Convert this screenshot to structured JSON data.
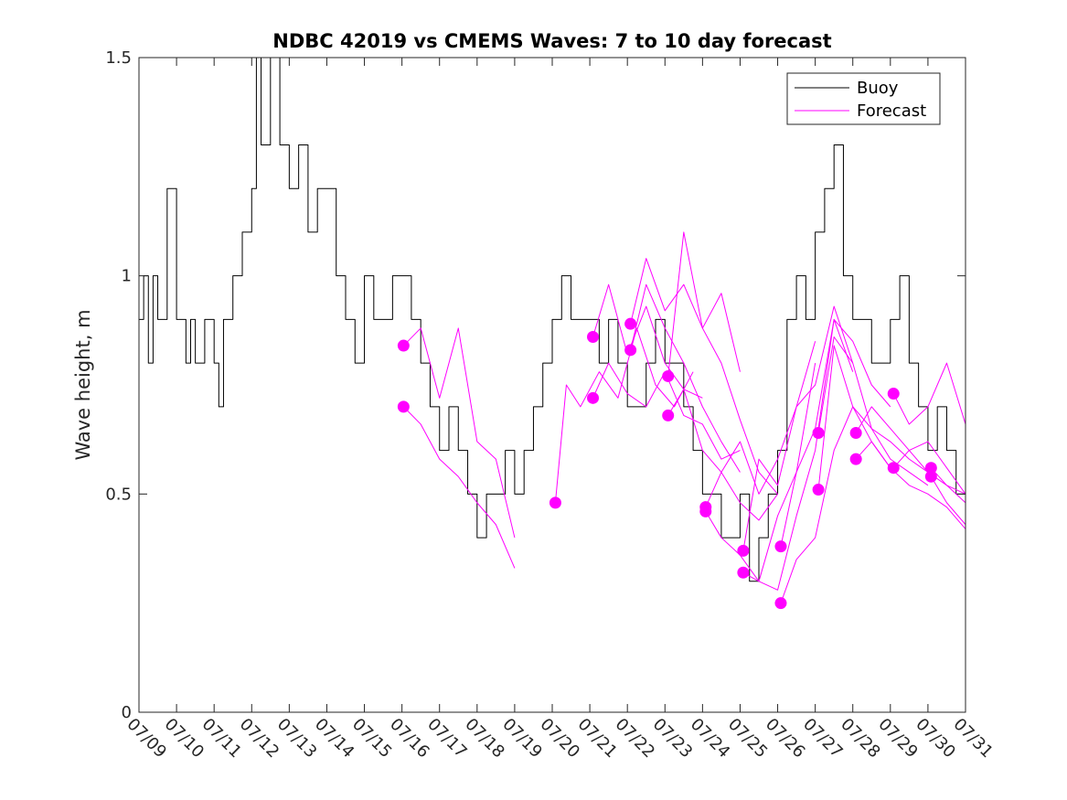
{
  "chart_data": {
    "type": "line",
    "title": "NDBC 42019 vs CMEMS Waves: 7 to 10 day forecast",
    "xlabel": "",
    "ylabel": "Wave height, m",
    "xlim": [
      "07/09",
      "07/31"
    ],
    "ylim": [
      0,
      1.5
    ],
    "y_ticks": [
      "0",
      "0.5",
      "1",
      "1.5"
    ],
    "x_ticks": [
      "07/09",
      "07/10",
      "07/11",
      "07/12",
      "07/13",
      "07/14",
      "07/15",
      "07/16",
      "07/17",
      "07/18",
      "07/19",
      "07/20",
      "07/21",
      "07/22",
      "07/23",
      "07/24",
      "07/25",
      "07/26",
      "07/27",
      "07/28",
      "07/29",
      "07/30",
      "07/31"
    ],
    "grid": false,
    "legend": {
      "placement": "top-right",
      "entries": [
        "Buoy",
        "Forecast"
      ]
    },
    "colors": {
      "buoy": "#000000",
      "forecast": "#ff00ff"
    },
    "series": [
      {
        "name": "Buoy",
        "x": [
          "07/09 00:00",
          "07/09 03:00",
          "07/09 06:00",
          "07/09 09:00",
          "07/09 12:00",
          "07/09 18:00",
          "07/10 00:00",
          "07/10 06:00",
          "07/10 09:00",
          "07/10 12:00",
          "07/10 18:00",
          "07/11 00:00",
          "07/11 03:00",
          "07/11 06:00",
          "07/11 12:00",
          "07/11 18:00",
          "07/12 00:00",
          "07/12 03:00",
          "07/12 06:00",
          "07/12 12:00",
          "07/12 18:00",
          "07/13 00:00",
          "07/13 06:00",
          "07/13 12:00",
          "07/13 18:00",
          "07/14 00:00",
          "07/14 06:00",
          "07/14 12:00",
          "07/14 18:00",
          "07/15 00:00",
          "07/15 06:00",
          "07/15 12:00",
          "07/15 18:00",
          "07/16 00:00",
          "07/16 06:00",
          "07/16 12:00",
          "07/16 18:00",
          "07/17 00:00",
          "07/17 06:00",
          "07/17 12:00",
          "07/17 18:00",
          "07/18 00:00",
          "07/18 06:00",
          "07/18 12:00",
          "07/18 18:00",
          "07/19 00:00",
          "07/19 06:00",
          "07/19 12:00",
          "07/19 18:00",
          "07/20 00:00",
          "07/20 06:00",
          "07/20 12:00",
          "07/20 18:00",
          "07/21 00:00",
          "07/21 06:00",
          "07/21 12:00",
          "07/21 18:00",
          "07/22 00:00",
          "07/22 06:00",
          "07/22 12:00",
          "07/22 18:00",
          "07/23 00:00",
          "07/23 06:00",
          "07/23 12:00",
          "07/23 18:00",
          "07/24 00:00",
          "07/24 06:00",
          "07/24 12:00",
          "07/24 18:00",
          "07/25 00:00",
          "07/25 06:00",
          "07/25 12:00",
          "07/25 18:00",
          "07/26 00:00",
          "07/26 06:00",
          "07/26 12:00",
          "07/26 18:00",
          "07/27 00:00",
          "07/27 06:00",
          "07/27 12:00",
          "07/27 18:00",
          "07/28 00:00",
          "07/28 06:00",
          "07/28 12:00",
          "07/28 18:00",
          "07/29 00:00",
          "07/29 06:00",
          "07/29 12:00",
          "07/29 18:00",
          "07/30 00:00",
          "07/30 06:00",
          "07/30 12:00",
          "07/30 18:00",
          "07/31 00:00"
        ],
        "y": [
          0.9,
          1.0,
          0.8,
          1.0,
          0.9,
          1.2,
          0.9,
          0.8,
          0.9,
          0.8,
          0.9,
          0.8,
          0.7,
          0.9,
          1.0,
          1.1,
          1.2,
          1.5,
          1.3,
          1.5,
          1.3,
          1.2,
          1.3,
          1.1,
          1.2,
          1.2,
          1.0,
          0.9,
          0.8,
          1.0,
          0.9,
          0.9,
          1.0,
          1.0,
          0.9,
          0.8,
          0.7,
          0.6,
          0.7,
          0.6,
          0.5,
          0.4,
          0.5,
          0.5,
          0.6,
          0.5,
          0.6,
          0.7,
          0.8,
          0.9,
          1.0,
          0.9,
          0.9,
          0.9,
          0.8,
          0.9,
          0.8,
          0.7,
          0.7,
          0.8,
          0.9,
          0.8,
          0.8,
          0.7,
          0.6,
          0.5,
          0.5,
          0.4,
          0.4,
          0.5,
          0.3,
          0.4,
          0.5,
          0.6,
          0.9,
          1.0,
          0.9,
          1.1,
          1.2,
          1.3,
          1.0,
          0.9,
          0.9,
          0.8,
          0.8,
          0.9,
          1.0,
          0.8,
          0.7,
          0.6,
          0.7,
          0.6,
          0.5,
          0.5
        ]
      },
      {
        "name": "Forecast",
        "x": [
          "07/16 01:00",
          "07/16 12:00",
          "07/17 00:00",
          "07/17 12:00",
          "07/18 00:00",
          "07/18 12:00",
          "07/19 00:00"
        ],
        "y": [
          0.84,
          0.88,
          0.72,
          0.88,
          0.62,
          0.58,
          0.4
        ]
      },
      {
        "name": "Forecast",
        "x": [
          "07/16 01:00",
          "07/16 12:00",
          "07/17 00:00",
          "07/17 12:00",
          "07/18 00:00",
          "07/18 12:00",
          "07/19 00:00"
        ],
        "y": [
          0.7,
          0.66,
          0.58,
          0.54,
          0.48,
          0.43,
          0.33
        ]
      },
      {
        "name": "Forecast",
        "x": [
          "07/20 02:00",
          "07/20 09:00",
          "07/20 18:00",
          "07/21 06:00",
          "07/21 18:00",
          "07/22 06:00",
          "07/22 18:00",
          "07/23 06:00",
          "07/23 18:00"
        ],
        "y": [
          0.48,
          0.75,
          0.7,
          0.78,
          0.72,
          0.88,
          0.75,
          0.7,
          0.78
        ]
      },
      {
        "name": "Forecast",
        "x": [
          "07/21 02:00",
          "07/21 12:00",
          "07/22 00:00",
          "07/22 12:00",
          "07/23 00:00",
          "07/23 12:00",
          "07/24 00:00"
        ],
        "y": [
          0.86,
          0.98,
          0.82,
          0.93,
          0.8,
          0.74,
          0.72
        ]
      },
      {
        "name": "Forecast",
        "x": [
          "07/21 02:00",
          "07/21 12:00",
          "07/22 00:00",
          "07/22 12:00",
          "07/23 00:00",
          "07/23 12:00",
          "07/24 00:00",
          "07/24 12:00",
          "07/25 00:00"
        ],
        "y": [
          0.72,
          0.8,
          0.73,
          0.7,
          0.78,
          0.68,
          0.66,
          0.58,
          0.6
        ]
      },
      {
        "name": "Forecast",
        "x": [
          "07/22 02:00",
          "07/22 12:00",
          "07/23 00:00",
          "07/23 12:00",
          "07/24 00:00",
          "07/24 12:00",
          "07/25 00:00"
        ],
        "y": [
          0.89,
          1.04,
          0.92,
          0.98,
          0.88,
          0.96,
          0.78
        ]
      },
      {
        "name": "Forecast",
        "x": [
          "07/22 02:00",
          "07/22 12:00",
          "07/23 00:00",
          "07/23 12:00",
          "07/24 00:00",
          "07/24 12:00",
          "07/25 00:00"
        ],
        "y": [
          0.83,
          0.98,
          0.88,
          0.8,
          0.7,
          0.62,
          0.55
        ]
      },
      {
        "name": "Forecast",
        "x": [
          "07/23 02:00",
          "07/23 12:00",
          "07/24 00:00",
          "07/24 12:00",
          "07/25 00:00",
          "07/25 12:00",
          "07/26 00:00"
        ],
        "y": [
          0.77,
          1.1,
          0.88,
          0.8,
          0.67,
          0.55,
          0.5
        ]
      },
      {
        "name": "Forecast",
        "x": [
          "07/23 02:00",
          "07/23 12:00",
          "07/24 00:00",
          "07/24 12:00",
          "07/25 00:00",
          "07/25 12:00",
          "07/26 00:00"
        ],
        "y": [
          0.68,
          0.74,
          0.6,
          0.55,
          0.48,
          0.44,
          0.5
        ]
      },
      {
        "name": "Forecast",
        "x": [
          "07/24 02:00",
          "07/24 12:00",
          "07/25 00:00",
          "07/25 12:00",
          "07/26 00:00",
          "07/26 12:00",
          "07/27 00:00"
        ],
        "y": [
          0.47,
          0.55,
          0.62,
          0.5,
          0.58,
          0.7,
          0.85
        ]
      },
      {
        "name": "Forecast",
        "x": [
          "07/24 02:00",
          "07/24 12:00",
          "07/25 00:00",
          "07/25 12:00",
          "07/26 00:00",
          "07/26 12:00",
          "07/27 00:00"
        ],
        "y": [
          0.46,
          0.4,
          0.36,
          0.3,
          0.45,
          0.55,
          0.8
        ]
      },
      {
        "name": "Forecast",
        "x": [
          "07/25 02:00",
          "07/25 12:00",
          "07/26 00:00",
          "07/26 12:00",
          "07/27 00:00",
          "07/27 12:00",
          "07/28 00:00"
        ],
        "y": [
          0.37,
          0.58,
          0.52,
          0.7,
          0.75,
          0.93,
          0.8
        ]
      },
      {
        "name": "Forecast",
        "x": [
          "07/25 02:00",
          "07/25 12:00",
          "07/26 00:00",
          "07/26 12:00",
          "07/27 00:00",
          "07/27 12:00",
          "07/28 00:00"
        ],
        "y": [
          0.32,
          0.3,
          0.28,
          0.45,
          0.6,
          0.9,
          0.78
        ]
      },
      {
        "name": "Forecast",
        "x": [
          "07/26 02:00",
          "07/26 12:00",
          "07/27 00:00",
          "07/27 12:00",
          "07/28 00:00",
          "07/28 12:00",
          "07/29 00:00"
        ],
        "y": [
          0.38,
          0.55,
          0.65,
          0.9,
          0.85,
          0.75,
          0.7
        ]
      },
      {
        "name": "Forecast",
        "x": [
          "07/26 02:00",
          "07/26 12:00",
          "07/27 00:00",
          "07/27 12:00",
          "07/28 00:00",
          "07/28 12:00",
          "07/29 00:00"
        ],
        "y": [
          0.25,
          0.35,
          0.4,
          0.6,
          0.7,
          0.62,
          0.56
        ]
      },
      {
        "name": "Forecast",
        "x": [
          "07/27 02:00",
          "07/27 12:00",
          "07/28 00:00",
          "07/28 12:00",
          "07/29 00:00",
          "07/29 12:00",
          "07/30 00:00"
        ],
        "y": [
          0.64,
          0.86,
          0.8,
          0.65,
          0.62,
          0.58,
          0.55
        ]
      },
      {
        "name": "Forecast",
        "x": [
          "07/27 02:00",
          "07/27 12:00",
          "07/28 00:00",
          "07/28 12:00",
          "07/29 00:00",
          "07/29 12:00",
          "07/30 00:00"
        ],
        "y": [
          0.51,
          0.84,
          0.7,
          0.65,
          0.58,
          0.55,
          0.52
        ]
      },
      {
        "name": "Forecast",
        "x": [
          "07/28 02:00",
          "07/28 12:00",
          "07/29 00:00",
          "07/29 12:00",
          "07/30 00:00",
          "07/30 12:00",
          "07/31 00:00"
        ],
        "y": [
          0.64,
          0.7,
          0.65,
          0.6,
          0.55,
          0.52,
          0.48
        ]
      },
      {
        "name": "Forecast",
        "x": [
          "07/28 02:00",
          "07/28 12:00",
          "07/29 00:00",
          "07/29 12:00",
          "07/30 00:00",
          "07/30 12:00",
          "07/31 00:00"
        ],
        "y": [
          0.58,
          0.62,
          0.56,
          0.52,
          0.5,
          0.47,
          0.42
        ]
      },
      {
        "name": "Forecast",
        "x": [
          "07/29 02:00",
          "07/29 12:00",
          "07/30 00:00",
          "07/30 12:00",
          "07/31 00:00"
        ],
        "y": [
          0.73,
          0.66,
          0.7,
          0.8,
          0.66
        ]
      },
      {
        "name": "Forecast",
        "x": [
          "07/29 02:00",
          "07/29 12:00",
          "07/30 00:00",
          "07/30 12:00",
          "07/31 00:00"
        ],
        "y": [
          0.56,
          0.6,
          0.62,
          0.56,
          0.5
        ]
      },
      {
        "name": "Forecast",
        "x": [
          "07/30 02:00",
          "07/30 12:00",
          "07/31 00:00"
        ],
        "y": [
          0.56,
          0.52,
          0.5
        ]
      },
      {
        "name": "Forecast",
        "x": [
          "07/30 02:00",
          "07/30 12:00",
          "07/31 00:00"
        ],
        "y": [
          0.54,
          0.48,
          0.43
        ]
      }
    ]
  }
}
